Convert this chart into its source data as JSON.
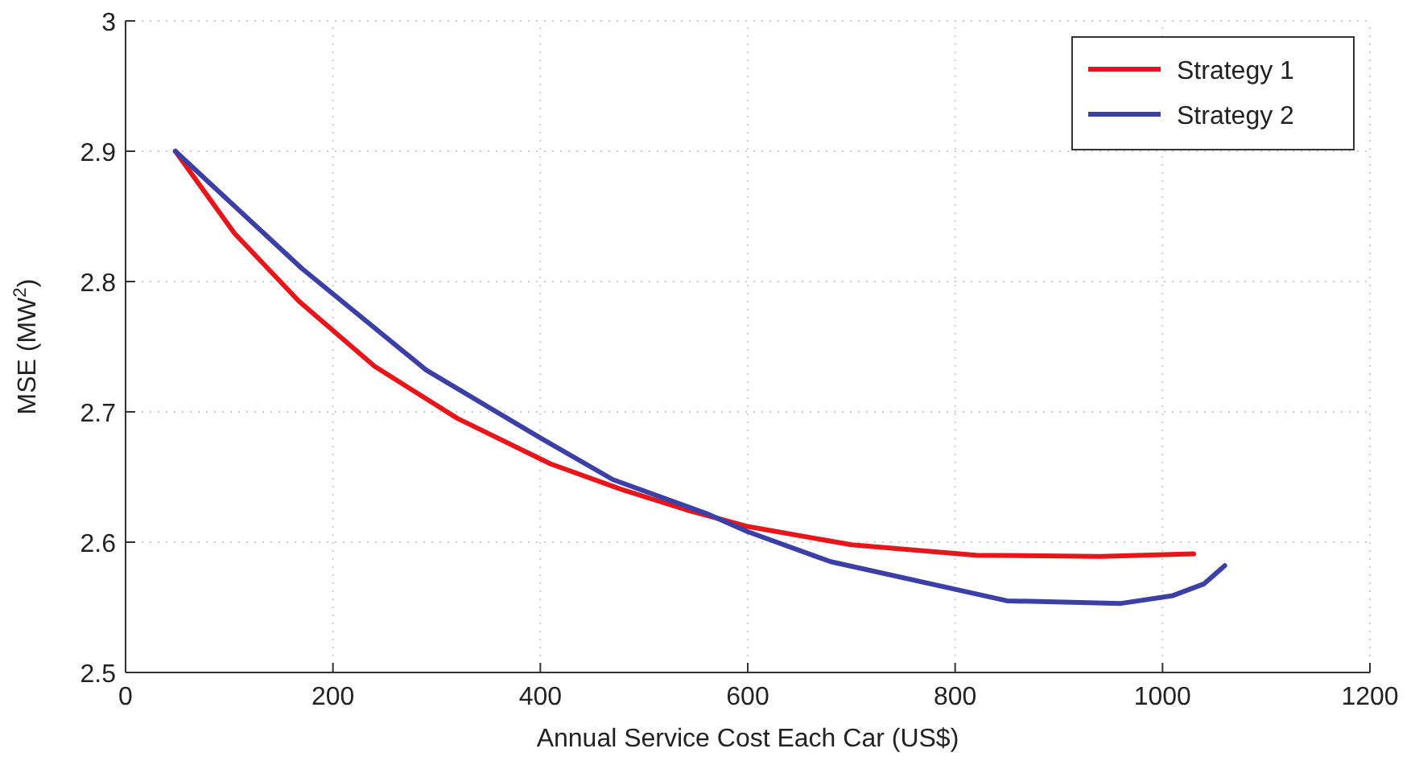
{
  "chart_data": {
    "type": "line",
    "xlabel": "Annual Service Cost Each Car (US$)",
    "ylabel": "MSE (MW$^{2}$)",
    "xlim": [
      0,
      1200
    ],
    "xticks": [
      0,
      200,
      400,
      600,
      800,
      1000,
      1200
    ],
    "ylim": [
      2.5,
      3
    ],
    "yticks": [
      2.5,
      2.6,
      2.7,
      2.8,
      2.9,
      3
    ],
    "grid": true,
    "legend": "top right",
    "marker": "none",
    "line_style": "solid",
    "series": [
      {
        "name": "Strategy 1",
        "color": "#e8151b",
        "x": [
          48,
          105,
          167,
          240,
          320,
          410,
          480,
          540,
          600,
          700,
          820,
          940,
          1030
        ],
        "values": [
          2.9,
          2.837,
          2.785,
          2.735,
          2.695,
          2.66,
          2.64,
          2.625,
          2.612,
          2.598,
          2.59,
          2.589,
          2.591
        ]
      },
      {
        "name": "Strategy 2",
        "color": "#3b3fa6",
        "x": [
          48,
          170,
          290,
          400,
          470,
          560,
          600,
          680,
          850,
          960,
          1010,
          1040,
          1060
        ],
        "values": [
          2.9,
          2.81,
          2.732,
          2.68,
          2.648,
          2.622,
          2.608,
          2.585,
          2.555,
          2.553,
          2.559,
          2.568,
          2.582
        ]
      }
    ]
  }
}
